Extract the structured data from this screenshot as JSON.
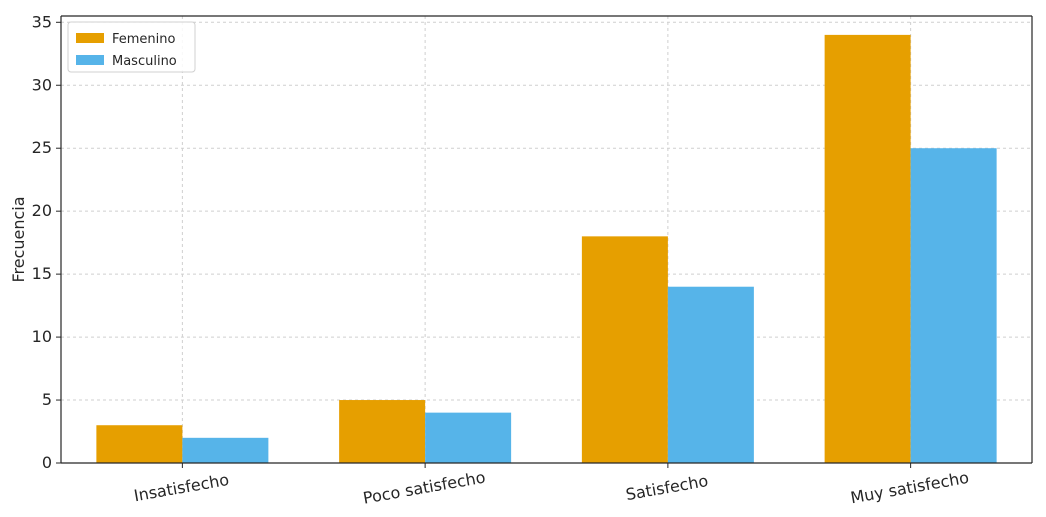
{
  "chart_data": {
    "type": "bar",
    "categories": [
      "Insatisfecho",
      "Poco satisfecho",
      "Satisfecho",
      "Muy satisfecho"
    ],
    "series": [
      {
        "name": "Femenino",
        "values": [
          3,
          5,
          18,
          34
        ],
        "color": "#E69F00"
      },
      {
        "name": "Masculino",
        "values": [
          2,
          4,
          14,
          25
        ],
        "color": "#56B4E9"
      }
    ],
    "title": "",
    "xlabel": "",
    "ylabel": "Frecuencia",
    "ylim": [
      0,
      35.5
    ],
    "yticks": [
      0,
      5,
      10,
      15,
      20,
      25,
      30,
      35
    ],
    "grid": true,
    "legend_position": "top-left",
    "xtick_rotation": 10
  }
}
